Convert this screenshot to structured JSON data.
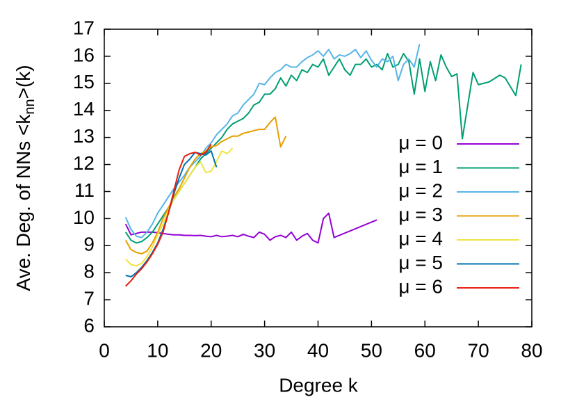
{
  "chart_data": {
    "type": "line",
    "xlabel": "Degree k",
    "ylabel_parts": [
      "Ave. Deg. of NNs <k",
      "nn",
      ">(k)"
    ],
    "xlim": [
      0,
      80
    ],
    "xticks": [
      0,
      10,
      20,
      30,
      40,
      50,
      60,
      70,
      80
    ],
    "ylim": [
      6,
      17
    ],
    "yticks": [
      6,
      7,
      8,
      9,
      10,
      11,
      12,
      13,
      14,
      15,
      16,
      17
    ],
    "legend": "right",
    "series": [
      {
        "name": "μ = 0",
        "color": "#9400d3",
        "x": [
          4,
          5,
          6,
          7,
          8,
          9,
          10,
          11,
          12,
          13,
          14,
          15,
          16,
          17,
          18,
          19,
          20,
          21,
          22,
          23,
          24,
          25,
          26,
          27,
          28,
          29,
          30,
          31,
          32,
          33,
          34,
          35,
          36,
          37,
          38,
          39,
          40,
          41,
          42,
          43,
          51
        ],
        "values": [
          9.8,
          9.4,
          9.45,
          9.5,
          9.5,
          9.5,
          9.48,
          9.45,
          9.42,
          9.4,
          9.4,
          9.38,
          9.38,
          9.37,
          9.38,
          9.35,
          9.33,
          9.38,
          9.33,
          9.35,
          9.38,
          9.33,
          9.42,
          9.35,
          9.3,
          9.5,
          9.42,
          9.2,
          9.33,
          9.38,
          9.3,
          9.5,
          9.2,
          9.35,
          9.45,
          9.2,
          9.1,
          10.0,
          10.2,
          9.3,
          9.95
        ]
      },
      {
        "name": "μ = 1",
        "color": "#009e73",
        "x": [
          4,
          5,
          6,
          7,
          8,
          9,
          10,
          11,
          12,
          13,
          14,
          15,
          16,
          17,
          18,
          19,
          20,
          21,
          22,
          23,
          24,
          25,
          26,
          27,
          28,
          29,
          30,
          31,
          32,
          33,
          34,
          35,
          36,
          37,
          38,
          39,
          40,
          41,
          42,
          43,
          44,
          45,
          46,
          47,
          48,
          49,
          50,
          51,
          52,
          53,
          54,
          55,
          56,
          57,
          58,
          59,
          60,
          61,
          62,
          63,
          64,
          65,
          66,
          67,
          69,
          70,
          72,
          74,
          75,
          77,
          78
        ],
        "values": [
          9.5,
          9.2,
          9.1,
          9.15,
          9.3,
          9.5,
          9.8,
          10.1,
          10.4,
          10.7,
          11.0,
          11.3,
          11.6,
          11.9,
          12.2,
          12.4,
          12.6,
          12.8,
          13.0,
          13.3,
          13.5,
          13.6,
          13.7,
          13.9,
          14.2,
          14.3,
          14.6,
          14.6,
          14.8,
          15.2,
          14.9,
          15.3,
          15.1,
          15.5,
          15.4,
          15.7,
          15.6,
          15.9,
          15.3,
          15.6,
          15.9,
          15.5,
          15.3,
          15.7,
          15.7,
          15.9,
          15.6,
          15.7,
          15.5,
          16.1,
          15.6,
          15.7,
          16.1,
          15.8,
          14.6,
          15.9,
          14.7,
          15.8,
          15.1,
          16.05,
          15.6,
          15.25,
          15.35,
          12.95,
          15.4,
          14.95,
          15.05,
          15.3,
          15.2,
          14.55,
          15.7
        ]
      },
      {
        "name": "μ = 2",
        "color": "#56b4e9",
        "x": [
          4,
          5,
          6,
          7,
          8,
          9,
          10,
          11,
          12,
          13,
          14,
          15,
          16,
          17,
          18,
          19,
          20,
          21,
          22,
          23,
          24,
          25,
          26,
          27,
          28,
          29,
          30,
          31,
          32,
          33,
          34,
          35,
          36,
          37,
          38,
          39,
          40,
          41,
          42,
          43,
          44,
          45,
          46,
          47,
          48,
          49,
          50,
          51,
          52,
          53,
          54,
          55,
          56,
          57,
          58,
          59
        ],
        "values": [
          10.05,
          9.6,
          9.35,
          9.3,
          9.5,
          9.8,
          10.2,
          10.5,
          10.8,
          11.1,
          11.35,
          11.6,
          11.9,
          12.1,
          12.3,
          12.6,
          12.8,
          13.1,
          13.3,
          13.5,
          13.8,
          13.9,
          14.2,
          14.4,
          14.6,
          15.0,
          14.95,
          15.2,
          15.4,
          15.5,
          15.7,
          15.6,
          15.6,
          15.8,
          15.95,
          16.05,
          16.2,
          16.0,
          16.25,
          15.9,
          16.05,
          16.0,
          16.1,
          16.25,
          15.95,
          16.2,
          15.85,
          15.6,
          15.9,
          15.8,
          16.0,
          15.1,
          15.7,
          15.9,
          15.6,
          16.45
        ]
      },
      {
        "name": "μ = 3",
        "color": "#e69f00",
        "x": [
          4,
          5,
          6,
          7,
          8,
          9,
          10,
          11,
          12,
          13,
          14,
          15,
          16,
          17,
          18,
          19,
          20,
          21,
          22,
          23,
          24,
          25,
          26,
          27,
          28,
          29,
          30,
          31,
          32,
          33,
          34
        ],
        "values": [
          9.2,
          8.85,
          8.75,
          8.7,
          8.8,
          9.1,
          9.5,
          10.0,
          10.4,
          10.8,
          11.1,
          11.5,
          11.9,
          12.2,
          12.4,
          12.5,
          12.65,
          12.7,
          12.85,
          12.95,
          13.05,
          13.05,
          13.15,
          13.2,
          13.25,
          13.3,
          13.3,
          13.55,
          13.75,
          12.65,
          13.05
        ]
      },
      {
        "name": "μ = 4",
        "color": "#f0e442",
        "x": [
          4,
          5,
          6,
          7,
          8,
          9,
          10,
          11,
          12,
          13,
          14,
          15,
          16,
          17,
          18,
          19,
          20,
          21,
          22,
          23,
          24
        ],
        "values": [
          8.5,
          8.3,
          8.25,
          8.35,
          8.6,
          8.95,
          9.4,
          9.8,
          10.3,
          10.7,
          11.0,
          11.3,
          11.6,
          11.9,
          12.1,
          11.7,
          11.75,
          12.1,
          12.5,
          12.4,
          12.6
        ]
      },
      {
        "name": "μ = 5",
        "color": "#0072b2",
        "x": [
          4,
          5,
          6,
          7,
          8,
          9,
          10,
          11,
          12,
          13,
          14,
          15,
          16,
          17,
          18,
          19,
          20,
          21
        ],
        "values": [
          7.9,
          7.85,
          8.0,
          8.2,
          8.45,
          8.75,
          9.1,
          9.6,
          10.2,
          10.9,
          11.5,
          12.0,
          12.2,
          12.45,
          12.4,
          12.35,
          12.5,
          11.9
        ]
      },
      {
        "name": "μ = 6",
        "color": "#e51e10",
        "x": [
          4,
          5,
          6,
          7,
          8,
          9,
          10,
          11,
          12,
          13,
          14,
          15,
          16,
          17,
          18,
          19,
          20
        ],
        "values": [
          7.5,
          7.7,
          7.95,
          8.15,
          8.4,
          8.7,
          9.05,
          9.5,
          10.2,
          11.0,
          11.8,
          12.3,
          12.4,
          12.45,
          12.35,
          12.45,
          12.75
        ]
      }
    ]
  }
}
